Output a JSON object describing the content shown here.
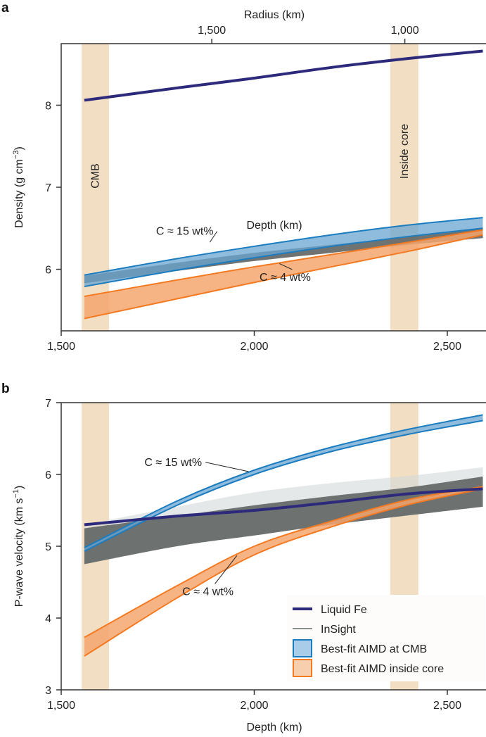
{
  "chart_data": [
    {
      "panel": "a",
      "type": "line",
      "title": "",
      "xlabel": "Depth (km)",
      "ylabel": {
        "main": "Density (g cm",
        "sup": "−3",
        "end": ")"
      },
      "top_axis": {
        "label": "Radius (km)",
        "ticks": [
          1500,
          1000
        ],
        "tick_labels": [
          "1,500",
          "1,000"
        ],
        "relation": "radius = 3390 - depth"
      },
      "xlim": [
        1500,
        2592
      ],
      "ylim": [
        5.25,
        8.75
      ],
      "xticks": [
        1500,
        2000,
        2500
      ],
      "xtick_labels": [
        "1,500",
        "2,000",
        "2,500"
      ],
      "yticks": [
        6,
        7,
        8
      ],
      "ytick_labels": [
        "6",
        "7",
        "8"
      ],
      "x": [
        1560,
        1800,
        2000,
        2200,
        2400,
        2592
      ],
      "regions": [
        {
          "name": "CMB",
          "label": "CMB",
          "range": [
            1553,
            1624
          ]
        },
        {
          "name": "Inside core",
          "label": "Inside core",
          "range": [
            2352,
            2425
          ]
        }
      ],
      "series": [
        {
          "name": "InSight",
          "kind": "band",
          "upper": [
            5.92,
            6.08,
            6.2,
            6.3,
            6.4,
            6.5
          ],
          "lower": [
            5.83,
            5.98,
            6.1,
            6.2,
            6.3,
            6.38
          ]
        },
        {
          "name": "Best-fit AIMD inside core",
          "kind": "band",
          "upper": [
            5.67,
            5.87,
            6.03,
            6.18,
            6.33,
            6.48
          ],
          "lower": [
            5.4,
            5.64,
            5.84,
            6.03,
            6.22,
            6.42
          ]
        },
        {
          "name": "Best-fit AIMD at CMB",
          "kind": "band",
          "upper": [
            5.93,
            6.13,
            6.28,
            6.42,
            6.54,
            6.63
          ],
          "lower": [
            5.79,
            5.99,
            6.14,
            6.28,
            6.4,
            6.5
          ]
        },
        {
          "name": "Liquid Fe",
          "kind": "line",
          "values": [
            8.06,
            8.21,
            8.33,
            8.46,
            8.57,
            8.66
          ]
        }
      ],
      "annotations": [
        {
          "text": "C ≈ 15 wt%",
          "at": [
            1820,
            6.42
          ],
          "points_to": [
            1885,
            6.33
          ]
        },
        {
          "text": "C ≈ 4 wt%",
          "at": [
            2080,
            5.86
          ],
          "points_to": [
            2065,
            6.07
          ]
        }
      ]
    },
    {
      "panel": "b",
      "type": "line",
      "title": "",
      "xlabel": "Depth (km)",
      "ylabel": {
        "main": "P-wave velocity (km s",
        "sup": "−1",
        "end": ")"
      },
      "xlim": [
        1500,
        2592
      ],
      "ylim": [
        3,
        7
      ],
      "xticks": [
        1500,
        2000,
        2500
      ],
      "xtick_labels": [
        "1,500",
        "2,000",
        "2,500"
      ],
      "yticks": [
        3,
        4,
        5,
        6,
        7
      ],
      "ytick_labels": [
        "3",
        "4",
        "5",
        "6",
        "7"
      ],
      "x": [
        1560,
        1800,
        2000,
        2200,
        2400,
        2592
      ],
      "regions": [
        {
          "name": "CMB",
          "range": [
            1553,
            1624
          ]
        },
        {
          "name": "Inside core",
          "range": [
            2352,
            2425
          ]
        }
      ],
      "series": [
        {
          "name": "InSight",
          "kind": "band",
          "upper": [
            5.25,
            5.42,
            5.57,
            5.7,
            5.82,
            5.97
          ],
          "lower": [
            4.75,
            5.0,
            5.15,
            5.3,
            5.43,
            5.55
          ],
          "envelope_upper": [
            5.3,
            5.55,
            5.75,
            5.88,
            5.98,
            6.1
          ]
        },
        {
          "name": "Best-fit AIMD inside core",
          "kind": "band",
          "upper": [
            3.73,
            4.45,
            5.0,
            5.35,
            5.65,
            5.83
          ],
          "lower": [
            3.47,
            4.28,
            4.88,
            5.27,
            5.58,
            5.8
          ]
        },
        {
          "name": "Best-fit AIMD at CMB",
          "kind": "band",
          "upper": [
            4.98,
            5.63,
            6.06,
            6.38,
            6.63,
            6.83
          ],
          "lower": [
            4.93,
            5.57,
            6.0,
            6.32,
            6.56,
            6.75
          ]
        },
        {
          "name": "Liquid Fe",
          "kind": "line",
          "values": [
            5.3,
            5.42,
            5.5,
            5.61,
            5.73,
            5.8
          ]
        }
      ],
      "annotations": [
        {
          "text": "C ≈ 15 wt%",
          "at": [
            1790,
            6.12
          ],
          "points_to": [
            1985,
            6.04
          ]
        },
        {
          "text": "C ≈ 4 wt%",
          "at": [
            1880,
            4.32
          ],
          "points_to": [
            1955,
            4.87
          ]
        }
      ],
      "legend": {
        "placement": "bottom-right",
        "entries": [
          "Liquid Fe",
          "InSight",
          "Best-fit AIMD at CMB",
          "Best-fit AIMD inside core"
        ]
      }
    }
  ],
  "panel_labels": [
    "a",
    "b"
  ],
  "colors": {
    "liquid_fe": "#2d2a7c",
    "insight": "#5f6564",
    "insight_light": "#d3d8da",
    "cmb_line": "#1b7cc0",
    "cmb_fill": "#6aa6d2",
    "core_line": "#f47a22",
    "core_fill": "#f4a66e",
    "region": "#f2dfc3"
  }
}
